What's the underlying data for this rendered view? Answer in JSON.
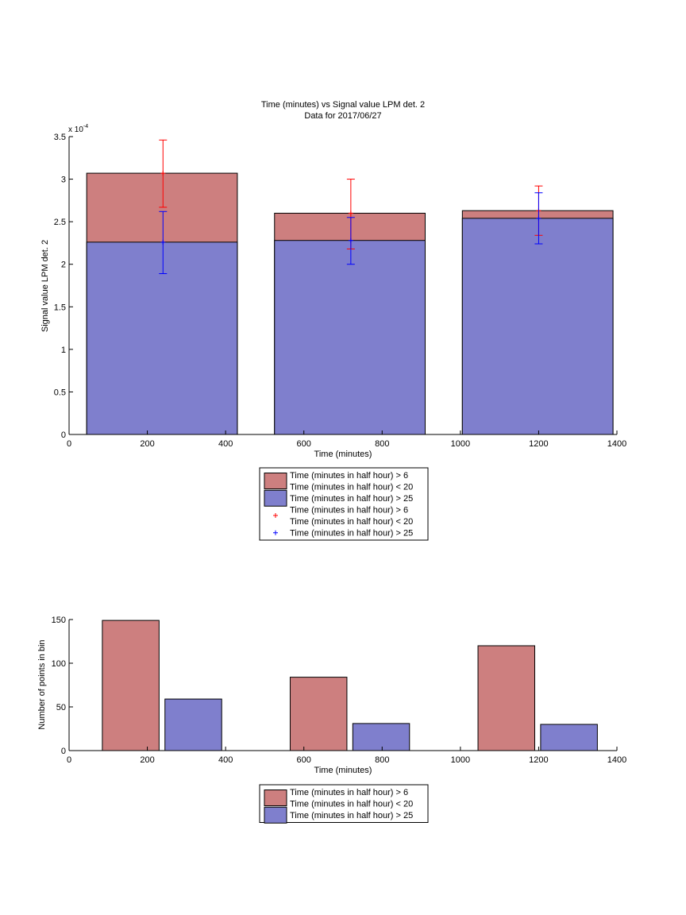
{
  "colors": {
    "red_bar": "#cd7f7f",
    "blue_bar": "#7f7fcd",
    "red_err": "#ff0000",
    "blue_err": "#0000ff"
  },
  "chart_data": [
    {
      "type": "bar",
      "title": "Time (minutes) vs Signal value LPM det. 2",
      "subtitle": "Data for 2017/06/27",
      "xlabel": "Time (minutes)",
      "ylabel": "Signal value LPM det. 2",
      "y_exponent_label": "x 10",
      "y_exponent": "-4",
      "xlim": [
        0,
        1400
      ],
      "ylim": [
        0,
        3.5
      ],
      "x_ticks": [
        0,
        200,
        400,
        600,
        800,
        1000,
        1200,
        1400
      ],
      "y_ticks": [
        0,
        0.5,
        1,
        1.5,
        2,
        2.5,
        3,
        3.5
      ],
      "y_tick_labels": [
        "0",
        "0.5",
        "1",
        "1.5",
        "2",
        "2.5",
        "3",
        "3.5"
      ],
      "bins": [
        {
          "x_start": 45,
          "x_end": 430,
          "center": 240
        },
        {
          "x_start": 525,
          "x_end": 910,
          "center": 720
        },
        {
          "x_start": 1005,
          "x_end": 1390,
          "center": 1200
        }
      ],
      "series": [
        {
          "name": "Time (minutes in half hour) > 6\nTime (minutes in half hour) < 20",
          "kind": "bar",
          "color": "red",
          "values": [
            3.07,
            2.6,
            2.63
          ]
        },
        {
          "name": "Time (minutes in half hour) > 25",
          "kind": "bar",
          "color": "blue",
          "values": [
            2.26,
            2.28,
            2.54
          ]
        },
        {
          "name": "Time (minutes in half hour) > 6\nTime (minutes in half hour) < 20",
          "kind": "errorbar",
          "color": "red",
          "center": [
            3.07,
            2.6,
            2.63
          ],
          "lower": [
            2.67,
            2.18,
            2.34
          ],
          "upper": [
            3.46,
            3.0,
            2.92
          ]
        },
        {
          "name": "Time (minutes in half hour) > 25",
          "kind": "errorbar",
          "color": "blue",
          "center": [
            2.26,
            2.28,
            2.54
          ],
          "lower": [
            1.89,
            2.0,
            2.24
          ],
          "upper": [
            2.62,
            2.55,
            2.84
          ]
        }
      ],
      "legend": {
        "placement": "below",
        "entries": [
          {
            "kind": "patch",
            "color": "red",
            "lines": [
              "Time (minutes in half hour) > 6",
              "Time (minutes in half hour) < 20"
            ]
          },
          {
            "kind": "patch",
            "color": "blue",
            "lines": [
              "Time (minutes in half hour) > 25"
            ]
          },
          {
            "kind": "marker",
            "color": "red",
            "lines": [
              "Time (minutes in half hour) > 6",
              "Time (minutes in half hour) < 20"
            ]
          },
          {
            "kind": "marker",
            "color": "blue",
            "lines": [
              "Time (minutes in half hour) > 25"
            ]
          }
        ]
      }
    },
    {
      "type": "bar",
      "title": "",
      "xlabel": "Time (minutes)",
      "ylabel": "Number of points in bin",
      "xlim": [
        0,
        1400
      ],
      "ylim": [
        0,
        150
      ],
      "x_ticks": [
        0,
        200,
        400,
        600,
        800,
        1000,
        1200,
        1400
      ],
      "y_ticks": [
        0,
        50,
        100,
        150
      ],
      "bars": [
        {
          "series": "red",
          "x_start": 85,
          "x_end": 230,
          "value": 149
        },
        {
          "series": "blue",
          "x_start": 245,
          "x_end": 390,
          "value": 59
        },
        {
          "series": "red",
          "x_start": 565,
          "x_end": 710,
          "value": 84
        },
        {
          "series": "blue",
          "x_start": 725,
          "x_end": 870,
          "value": 31
        },
        {
          "series": "red",
          "x_start": 1045,
          "x_end": 1190,
          "value": 120
        },
        {
          "series": "blue",
          "x_start": 1205,
          "x_end": 1350,
          "value": 30
        }
      ],
      "legend": {
        "placement": "below",
        "entries": [
          {
            "kind": "patch",
            "color": "red",
            "lines": [
              "Time (minutes in half hour) > 6",
              "Time (minutes in half hour) < 20"
            ]
          },
          {
            "kind": "patch",
            "color": "blue",
            "lines": [
              "Time (minutes in half hour) > 25"
            ]
          }
        ]
      }
    }
  ]
}
